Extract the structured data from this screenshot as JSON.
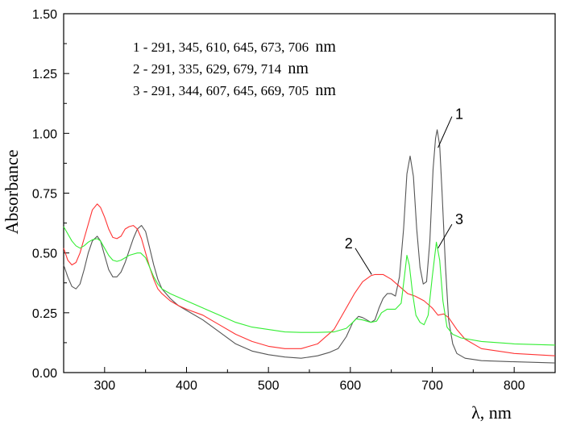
{
  "chart_data": {
    "type": "line",
    "xlabel": "λ, nm",
    "ylabel": "Absorbance",
    "xlim": [
      250,
      850
    ],
    "ylim": [
      0.0,
      1.5
    ],
    "x_ticks": [
      300,
      400,
      500,
      600,
      700,
      800
    ],
    "y_ticks": [
      "0.00",
      "0.25",
      "0.50",
      "0.75",
      "1.00",
      "1.25",
      "1.50"
    ],
    "grid": false,
    "annotations": [
      {
        "text": "1 - 291, 345, 610, 645, 673, 706",
        "unit": "nm"
      },
      {
        "text": "2 - 291, 335, 629, 679, 714",
        "unit": "nm"
      },
      {
        "text": "3 - 291, 344, 607, 645, 669, 705",
        "unit": "nm"
      }
    ],
    "series": [
      {
        "label": "1",
        "color": "#555555",
        "label_pos": [
          728,
          1.08
        ],
        "label_line": [
          [
            707,
            0.94
          ],
          [
            724,
            1.07
          ]
        ],
        "points": [
          [
            250,
            0.45
          ],
          [
            255,
            0.4
          ],
          [
            260,
            0.36
          ],
          [
            265,
            0.35
          ],
          [
            270,
            0.37
          ],
          [
            275,
            0.43
          ],
          [
            280,
            0.5
          ],
          [
            285,
            0.55
          ],
          [
            291,
            0.57
          ],
          [
            295,
            0.55
          ],
          [
            300,
            0.49
          ],
          [
            305,
            0.43
          ],
          [
            310,
            0.4
          ],
          [
            315,
            0.4
          ],
          [
            320,
            0.42
          ],
          [
            325,
            0.46
          ],
          [
            330,
            0.51
          ],
          [
            335,
            0.56
          ],
          [
            340,
            0.6
          ],
          [
            345,
            0.615
          ],
          [
            350,
            0.59
          ],
          [
            355,
            0.52
          ],
          [
            360,
            0.45
          ],
          [
            365,
            0.39
          ],
          [
            370,
            0.35
          ],
          [
            380,
            0.31
          ],
          [
            390,
            0.28
          ],
          [
            400,
            0.26
          ],
          [
            420,
            0.22
          ],
          [
            440,
            0.17
          ],
          [
            460,
            0.12
          ],
          [
            480,
            0.09
          ],
          [
            500,
            0.075
          ],
          [
            520,
            0.065
          ],
          [
            540,
            0.06
          ],
          [
            560,
            0.07
          ],
          [
            575,
            0.085
          ],
          [
            585,
            0.1
          ],
          [
            595,
            0.15
          ],
          [
            603,
            0.21
          ],
          [
            610,
            0.235
          ],
          [
            615,
            0.23
          ],
          [
            620,
            0.22
          ],
          [
            625,
            0.21
          ],
          [
            630,
            0.22
          ],
          [
            635,
            0.27
          ],
          [
            640,
            0.31
          ],
          [
            645,
            0.33
          ],
          [
            650,
            0.33
          ],
          [
            655,
            0.32
          ],
          [
            660,
            0.4
          ],
          [
            665,
            0.6
          ],
          [
            669,
            0.83
          ],
          [
            673,
            0.905
          ],
          [
            677,
            0.82
          ],
          [
            681,
            0.6
          ],
          [
            685,
            0.44
          ],
          [
            689,
            0.37
          ],
          [
            693,
            0.38
          ],
          [
            697,
            0.55
          ],
          [
            701,
            0.85
          ],
          [
            704,
            0.98
          ],
          [
            706,
            1.015
          ],
          [
            709,
            0.95
          ],
          [
            712,
            0.75
          ],
          [
            716,
            0.45
          ],
          [
            720,
            0.22
          ],
          [
            725,
            0.12
          ],
          [
            730,
            0.08
          ],
          [
            740,
            0.06
          ],
          [
            760,
            0.05
          ],
          [
            800,
            0.045
          ],
          [
            850,
            0.04
          ]
        ]
      },
      {
        "label": "2",
        "color": "#ff3333",
        "label_pos": [
          593,
          0.54
        ],
        "label_line": [
          [
            606,
            0.52
          ],
          [
            626,
            0.41
          ]
        ],
        "points": [
          [
            250,
            0.52
          ],
          [
            255,
            0.47
          ],
          [
            260,
            0.45
          ],
          [
            265,
            0.46
          ],
          [
            270,
            0.5
          ],
          [
            275,
            0.56
          ],
          [
            280,
            0.62
          ],
          [
            285,
            0.68
          ],
          [
            291,
            0.705
          ],
          [
            295,
            0.69
          ],
          [
            300,
            0.65
          ],
          [
            305,
            0.6
          ],
          [
            310,
            0.565
          ],
          [
            315,
            0.56
          ],
          [
            320,
            0.57
          ],
          [
            325,
            0.6
          ],
          [
            330,
            0.61
          ],
          [
            335,
            0.615
          ],
          [
            340,
            0.6
          ],
          [
            345,
            0.56
          ],
          [
            350,
            0.5
          ],
          [
            355,
            0.44
          ],
          [
            360,
            0.39
          ],
          [
            365,
            0.35
          ],
          [
            370,
            0.33
          ],
          [
            380,
            0.3
          ],
          [
            390,
            0.28
          ],
          [
            400,
            0.265
          ],
          [
            420,
            0.24
          ],
          [
            440,
            0.2
          ],
          [
            460,
            0.16
          ],
          [
            480,
            0.13
          ],
          [
            500,
            0.11
          ],
          [
            520,
            0.1
          ],
          [
            540,
            0.1
          ],
          [
            560,
            0.12
          ],
          [
            580,
            0.18
          ],
          [
            595,
            0.27
          ],
          [
            605,
            0.33
          ],
          [
            615,
            0.38
          ],
          [
            625,
            0.405
          ],
          [
            630,
            0.41
          ],
          [
            640,
            0.41
          ],
          [
            650,
            0.39
          ],
          [
            660,
            0.36
          ],
          [
            670,
            0.33
          ],
          [
            679,
            0.32
          ],
          [
            690,
            0.3
          ],
          [
            700,
            0.27
          ],
          [
            707,
            0.24
          ],
          [
            714,
            0.245
          ],
          [
            720,
            0.23
          ],
          [
            730,
            0.18
          ],
          [
            740,
            0.14
          ],
          [
            760,
            0.1
          ],
          [
            800,
            0.08
          ],
          [
            850,
            0.07
          ]
        ]
      },
      {
        "label": "3",
        "color": "#33ee33",
        "label_pos": [
          728,
          0.64
        ],
        "label_line": [
          [
            707,
            0.52
          ],
          [
            724,
            0.62
          ]
        ],
        "points": [
          [
            250,
            0.61
          ],
          [
            255,
            0.58
          ],
          [
            260,
            0.55
          ],
          [
            265,
            0.53
          ],
          [
            270,
            0.52
          ],
          [
            275,
            0.53
          ],
          [
            280,
            0.545
          ],
          [
            285,
            0.555
          ],
          [
            291,
            0.56
          ],
          [
            295,
            0.55
          ],
          [
            300,
            0.52
          ],
          [
            305,
            0.49
          ],
          [
            310,
            0.47
          ],
          [
            315,
            0.465
          ],
          [
            320,
            0.47
          ],
          [
            325,
            0.48
          ],
          [
            330,
            0.49
          ],
          [
            335,
            0.495
          ],
          [
            340,
            0.5
          ],
          [
            344,
            0.5
          ],
          [
            350,
            0.48
          ],
          [
            355,
            0.44
          ],
          [
            360,
            0.4
          ],
          [
            365,
            0.37
          ],
          [
            370,
            0.35
          ],
          [
            380,
            0.33
          ],
          [
            400,
            0.3
          ],
          [
            420,
            0.27
          ],
          [
            440,
            0.24
          ],
          [
            460,
            0.21
          ],
          [
            480,
            0.19
          ],
          [
            500,
            0.18
          ],
          [
            520,
            0.17
          ],
          [
            540,
            0.168
          ],
          [
            560,
            0.168
          ],
          [
            580,
            0.17
          ],
          [
            595,
            0.185
          ],
          [
            603,
            0.21
          ],
          [
            607,
            0.225
          ],
          [
            615,
            0.22
          ],
          [
            625,
            0.21
          ],
          [
            632,
            0.215
          ],
          [
            638,
            0.25
          ],
          [
            645,
            0.265
          ],
          [
            655,
            0.265
          ],
          [
            662,
            0.29
          ],
          [
            666,
            0.4
          ],
          [
            669,
            0.49
          ],
          [
            672,
            0.45
          ],
          [
            676,
            0.33
          ],
          [
            680,
            0.24
          ],
          [
            685,
            0.21
          ],
          [
            690,
            0.2
          ],
          [
            695,
            0.24
          ],
          [
            700,
            0.4
          ],
          [
            705,
            0.545
          ],
          [
            709,
            0.47
          ],
          [
            713,
            0.3
          ],
          [
            718,
            0.19
          ],
          [
            725,
            0.16
          ],
          [
            735,
            0.145
          ],
          [
            760,
            0.13
          ],
          [
            800,
            0.12
          ],
          [
            850,
            0.115
          ]
        ]
      }
    ]
  }
}
